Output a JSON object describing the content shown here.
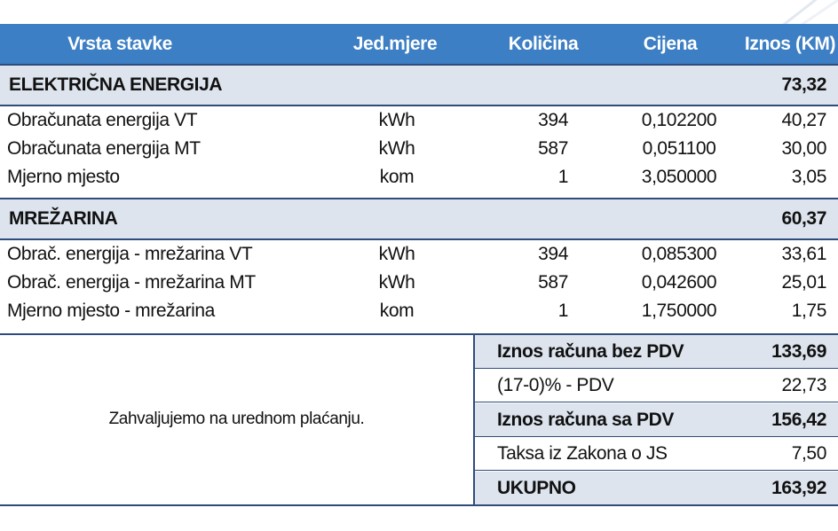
{
  "header": {
    "columns": [
      "Vrsta stavke",
      "Jed.mjere",
      "Količina",
      "Cijena",
      "Iznos (KM)"
    ]
  },
  "sections": [
    {
      "title": "ELEKTRIČNA ENERGIJA",
      "total": "73,32",
      "rows": [
        [
          "Obračunata energija VT",
          "kWh",
          "394",
          "0,102200",
          "40,27"
        ],
        [
          "Obračunata energija MT",
          "kWh",
          "587",
          "0,051100",
          "30,00"
        ],
        [
          "Mjerno mjesto",
          "kom",
          "1",
          "3,050000",
          "3,05"
        ]
      ]
    },
    {
      "title": "MREŽARINA",
      "total": "60,37",
      "rows": [
        [
          "Obrač. energija - mrežarina VT",
          "kWh",
          "394",
          "0,085300",
          "33,61"
        ],
        [
          "Obrač. energija - mrežarina MT",
          "kWh",
          "587",
          "0,042600",
          "25,01"
        ],
        [
          "Mjerno mjesto - mrežarina",
          "kom",
          "1",
          "1,750000",
          "1,75"
        ]
      ]
    }
  ],
  "note": "Zahvaljujemo na urednom plaćanju.",
  "summary": [
    {
      "label": "Iznos računa bez PDV",
      "value": "133,69"
    },
    {
      "label": "(17-0)% - PDV",
      "value": "22,73"
    },
    {
      "label": "Iznos računa sa PDV",
      "value": "156,42"
    },
    {
      "label": "Taksa iz Zakona o JS",
      "value": "7,50"
    },
    {
      "label": "UKUPNO",
      "value": "163,92"
    }
  ]
}
